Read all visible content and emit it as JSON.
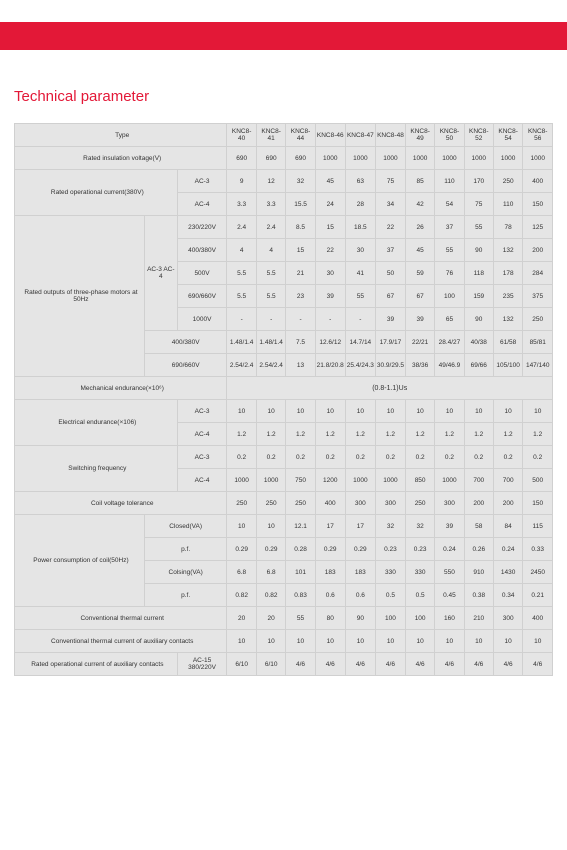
{
  "title": "Technical parameter",
  "columns": [
    "KNC8-40",
    "KNC8-41",
    "KNC8-44",
    "KNC8-46",
    "KNC8-47",
    "KNC8-48",
    "KNC8-49",
    "KNC8-50",
    "KNC8-52",
    "KNC8-54",
    "KNC8-56"
  ],
  "rows": {
    "type": "Type",
    "riv": {
      "label": "Rated insulation voltage(V)",
      "v": [
        "690",
        "690",
        "690",
        "1000",
        "1000",
        "1000",
        "1000",
        "1000",
        "1000",
        "1000",
        "1000"
      ]
    },
    "roc": {
      "label": "Rated operational current(380V)",
      "ac3": [
        "9",
        "12",
        "32",
        "45",
        "63",
        "75",
        "85",
        "110",
        "170",
        "250",
        "400"
      ],
      "ac4": [
        "3.3",
        "3.3",
        "15.5",
        "24",
        "28",
        "34",
        "42",
        "54",
        "75",
        "110",
        "150"
      ]
    },
    "outputs": {
      "label": "Rated outputs of three-phase motors at 50Hz",
      "sub1": "AC-3 AC-4",
      "r1": {
        "h": "230/220V",
        "v": [
          "2.4",
          "2.4",
          "8.5",
          "15",
          "18.5",
          "22",
          "26",
          "37",
          "55",
          "78",
          "125"
        ]
      },
      "r2": {
        "h": "400/380V",
        "v": [
          "4",
          "4",
          "15",
          "22",
          "30",
          "37",
          "45",
          "55",
          "90",
          "132",
          "200"
        ]
      },
      "r3": {
        "h": "500V",
        "v": [
          "5.5",
          "5.5",
          "21",
          "30",
          "41",
          "50",
          "59",
          "76",
          "118",
          "178",
          "284"
        ]
      },
      "r4": {
        "h": "690/660V",
        "v": [
          "5.5",
          "5.5",
          "23",
          "39",
          "55",
          "67",
          "67",
          "100",
          "159",
          "235",
          "375"
        ]
      },
      "r5": {
        "h": "1000V",
        "v": [
          "-",
          "-",
          "-",
          "-",
          "-",
          "39",
          "39",
          "65",
          "90",
          "132",
          "250"
        ]
      },
      "r6": {
        "h": "400/380V",
        "v": [
          "1.48/1.4",
          "1.48/1.4",
          "7.5",
          "12.6/12",
          "14.7/14",
          "17.9/17",
          "22/21",
          "28.4/27",
          "40/38",
          "61/58",
          "85/81"
        ]
      },
      "r7": {
        "h": "690/660V",
        "v": [
          "2.54/2.4",
          "2.54/2.4",
          "13",
          "21.8/20.8",
          "25.4/24.3",
          "30.9/29.5",
          "38/36",
          "49/46.9",
          "69/66",
          "105/100",
          "147/140"
        ]
      }
    },
    "mech": {
      "label": "Mechanical endurance(×10⁶)",
      "v": "(0.8-1.1)Us"
    },
    "elec": {
      "label": "Electrical endurance(×106)",
      "ac3": [
        "10",
        "10",
        "10",
        "10",
        "10",
        "10",
        "10",
        "10",
        "10",
        "10",
        "10"
      ],
      "ac4": [
        "1.2",
        "1.2",
        "1.2",
        "1.2",
        "1.2",
        "1.2",
        "1.2",
        "1.2",
        "1.2",
        "1.2",
        "1.2"
      ]
    },
    "swfreq": {
      "label": "Switching frequency",
      "ac3": [
        "0.2",
        "0.2",
        "0.2",
        "0.2",
        "0.2",
        "0.2",
        "0.2",
        "0.2",
        "0.2",
        "0.2",
        "0.2"
      ],
      "ac4": [
        "1000",
        "1000",
        "750",
        "1200",
        "1000",
        "1000",
        "850",
        "1000",
        "700",
        "700",
        "500"
      ]
    },
    "cvt": {
      "label": "Coil voltage tolerance",
      "v": [
        "250",
        "250",
        "250",
        "400",
        "300",
        "300",
        "250",
        "300",
        "200",
        "200",
        "150"
      ]
    },
    "power": {
      "label": "Power consumption of coil(50Hz)",
      "r1": {
        "h": "Closed(VA)",
        "v": [
          "10",
          "10",
          "12.1",
          "17",
          "17",
          "32",
          "32",
          "39",
          "58",
          "84",
          "115"
        ]
      },
      "r2": {
        "h": "p.f.",
        "v": [
          "0.29",
          "0.29",
          "0.28",
          "0.29",
          "0.29",
          "0.23",
          "0.23",
          "0.24",
          "0.26",
          "0.24",
          "0.33"
        ]
      },
      "r3": {
        "h": "Colsing(VA)",
        "v": [
          "6.8",
          "6.8",
          "101",
          "183",
          "183",
          "330",
          "330",
          "550",
          "910",
          "1430",
          "2450"
        ]
      },
      "r4": {
        "h": "p.f.",
        "v": [
          "0.82",
          "0.82",
          "0.83",
          "0.6",
          "0.6",
          "0.5",
          "0.5",
          "0.45",
          "0.38",
          "0.34",
          "0.21"
        ]
      }
    },
    "ctc": {
      "label": "Conventional thermal current",
      "v": [
        "20",
        "20",
        "55",
        "80",
        "90",
        "100",
        "100",
        "160",
        "210",
        "300",
        "400"
      ]
    },
    "ctca": {
      "label": "Conventional thermal current of auxiliary contacts",
      "v": [
        "10",
        "10",
        "10",
        "10",
        "10",
        "10",
        "10",
        "10",
        "10",
        "10",
        "10"
      ]
    },
    "rocac": {
      "label": "Rated operational current of auxiliary contacts",
      "sub": "AC-15 380/220V",
      "v": [
        "6/10",
        "6/10",
        "4/6",
        "4/6",
        "4/6",
        "4/6",
        "4/6",
        "4/6",
        "4/6",
        "4/6",
        "4/6"
      ]
    }
  },
  "ac3": "AC-3",
  "ac4": "AC-4"
}
